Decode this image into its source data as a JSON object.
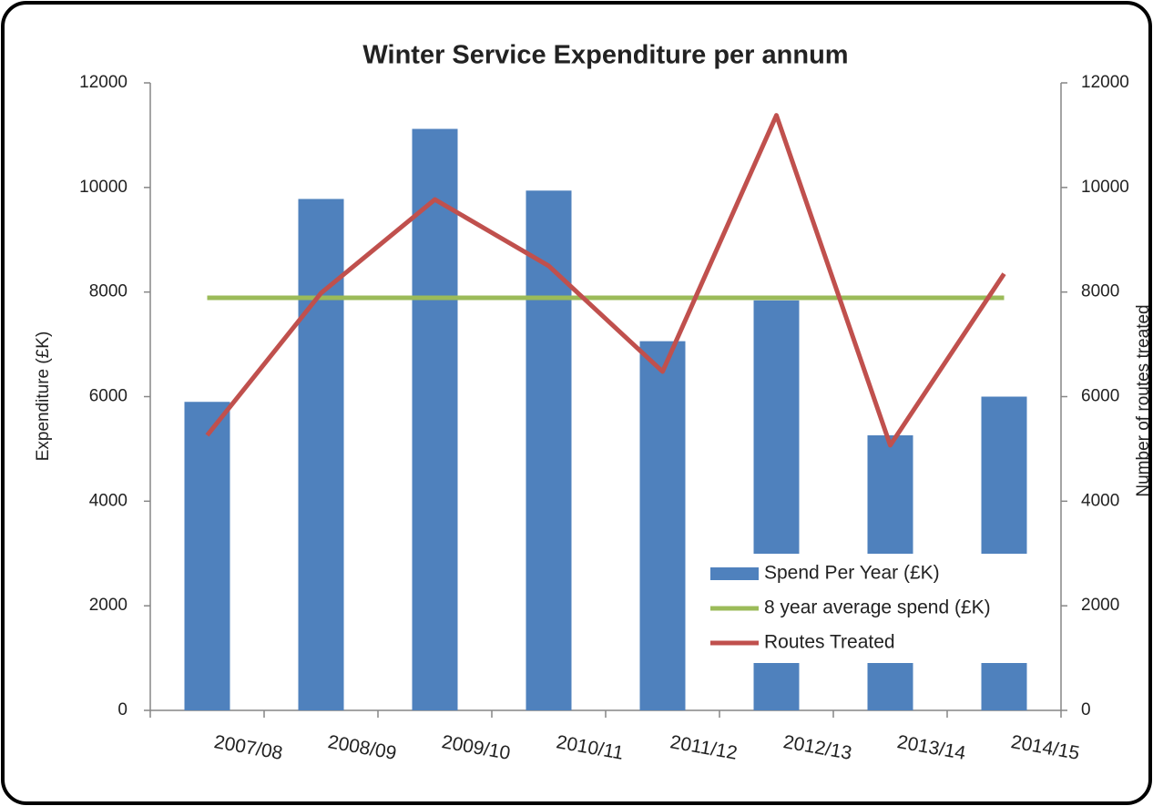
{
  "chart_data": {
    "type": "bar",
    "title": "Winter Service Expenditure per annum",
    "y_label": "Expenditure (£K)",
    "y2_label": "Number of routes treated",
    "categories": [
      "2007/08",
      "2008/09",
      "2009/10",
      "2010/11",
      "2011/12",
      "2012/13",
      "2013/14",
      "2014/15"
    ],
    "series": [
      {
        "name": "Spend Per Year (£K)",
        "type": "bar",
        "color": "#4f81bd",
        "values": [
          5900,
          9780,
          11120,
          9940,
          7060,
          7840,
          5260,
          6000
        ]
      },
      {
        "name": "8 year average spend (£K)",
        "type": "line",
        "color": "#9bbb59",
        "values": [
          7890,
          7890,
          7890,
          7890,
          7890,
          7890,
          7890,
          7890
        ]
      },
      {
        "name": "Routes Treated",
        "type": "line",
        "color": "#c0504d",
        "axis": "y2",
        "values": [
          5260,
          7980,
          9770,
          8500,
          6480,
          11380,
          5070,
          8350
        ]
      }
    ],
    "ylim": [
      0,
      12000
    ],
    "yticks": [
      0,
      2000,
      4000,
      6000,
      8000,
      10000,
      12000
    ],
    "y2lim": [
      0,
      12000
    ],
    "y2ticks": [
      0,
      2000,
      4000,
      6000,
      8000,
      10000,
      12000
    ],
    "legend": "lower right"
  }
}
